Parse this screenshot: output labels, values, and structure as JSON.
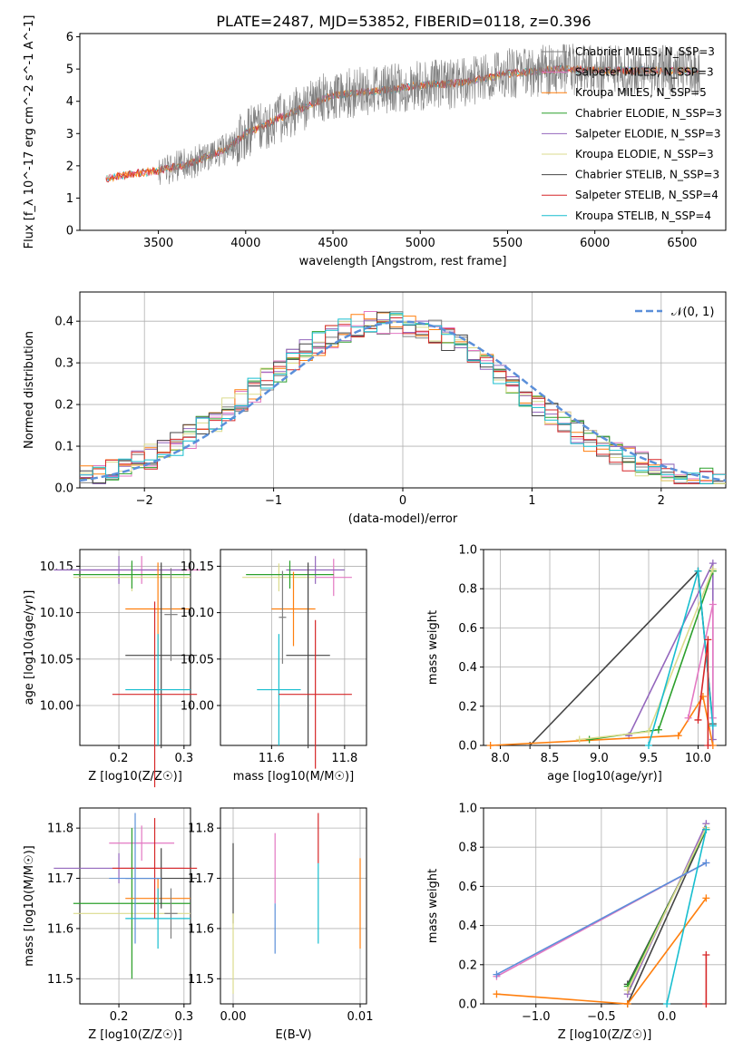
{
  "title": "PLATE=2487, MJD=53852, FIBERID=0118, z=0.396",
  "colors": {
    "grey": "#7f7f7f",
    "pink": "#e377c2",
    "orange": "#ff7f0e",
    "green": "#2ca02c",
    "purple": "#9467bd",
    "yellow": "#dbdb8d",
    "black": "#444444",
    "red": "#d62728",
    "cyan": "#17becf",
    "gauss": "#5b8fd9"
  },
  "chart_data": [
    {
      "id": "spectrum",
      "type": "line",
      "xlabel": "wavelength [Angstrom, rest frame]",
      "ylabel": "Flux [f_λ 10^-17 erg cm^-2 s^-1 A^-1]",
      "xlim": [
        3050,
        6750
      ],
      "ylim": [
        0,
        6.1
      ],
      "xticks": [
        "3500",
        "4000",
        "4500",
        "5000",
        "5500",
        "6000",
        "6500"
      ],
      "yticks": [
        "0",
        "1",
        "2",
        "3",
        "4",
        "5",
        "6"
      ],
      "legend": [
        "Chabrier MILES, N_SSP=3",
        "Salpeter MILES, N_SSP=3",
        "Kroupa MILES, N_SSP=5",
        "Chabrier ELODIE, N_SSP=3",
        "Salpeter ELODIE, N_SSP=3",
        "Kroupa ELODIE, N_SSP=3",
        "Chabrier STELIB, N_SSP=3",
        "Salpeter STELIB, N_SSP=4",
        "Kroupa STELIB, N_SSP=4"
      ],
      "continuum": [
        [
          3200,
          1.6
        ],
        [
          3350,
          1.75
        ],
        [
          3500,
          1.85
        ],
        [
          3700,
          2.1
        ],
        [
          3900,
          2.55
        ],
        [
          4000,
          3.0
        ],
        [
          4200,
          3.5
        ],
        [
          4500,
          4.2
        ],
        [
          4800,
          4.35
        ],
        [
          5000,
          4.5
        ],
        [
          5200,
          4.55
        ],
        [
          5500,
          4.85
        ],
        [
          5800,
          5.0
        ],
        [
          6100,
          4.95
        ],
        [
          6400,
          4.95
        ],
        [
          6600,
          4.95
        ]
      ]
    },
    {
      "id": "residuals",
      "type": "histogram",
      "xlabel": "(data-model)/error",
      "ylabel": "Normed distribution",
      "xlim": [
        -2.5,
        2.5
      ],
      "ylim": [
        0,
        0.47
      ],
      "xticks": [
        "−2",
        "−1",
        "0",
        "1",
        "2"
      ],
      "yticks": [
        "0.0",
        "0.1",
        "0.2",
        "0.3",
        "0.4"
      ],
      "legend": "𝒩(0, 1)"
    },
    {
      "id": "age-Z",
      "type": "scatter",
      "xlabel": "Z [log10(Z/Z☉)]",
      "ylabel": "age [log10(age/yr)]",
      "xlim": [
        0.14,
        0.31
      ],
      "ylim": [
        9.957,
        10.168
      ],
      "xticks": [
        "0.2",
        "0.3"
      ],
      "yticks": [
        "10.00",
        "10.05",
        "10.10",
        "10.15"
      ],
      "points": [
        {
          "c": "pink",
          "x": 0.235,
          "y": 10.146,
          "ex": 0.09,
          "ey": 0.015
        },
        {
          "c": "purple",
          "x": 0.2,
          "y": 10.146,
          "ex": 0.1,
          "ey": 0.015
        },
        {
          "c": "yellow",
          "x": 0.22,
          "y": 10.138,
          "ex": 0.09,
          "ey": 0.015
        },
        {
          "c": "green",
          "x": 0.22,
          "y": 10.141,
          "ex": 0.09,
          "ey": 0.015
        },
        {
          "c": "orange",
          "x": 0.26,
          "y": 10.104,
          "ex": 0.05,
          "ey": 0.05
        },
        {
          "c": "black",
          "x": 0.265,
          "y": 10.054,
          "ex": 0.055,
          "ey": 0.1
        },
        {
          "c": "grey",
          "x": 0.28,
          "y": 10.098,
          "ex": 0.01,
          "ey": 0.05
        },
        {
          "c": "cyan",
          "x": 0.26,
          "y": 10.017,
          "ex": 0.05,
          "ey": 0.06
        },
        {
          "c": "red",
          "x": 0.255,
          "y": 10.012,
          "ex": 0.065,
          "ey": 0.1
        }
      ]
    },
    {
      "id": "age-mass",
      "type": "scatter",
      "xlabel": "mass [log10(M/M☉)]",
      "ylabel": "",
      "xlim": [
        11.46,
        11.86
      ],
      "ylim": [
        9.957,
        10.168
      ],
      "xticks": [
        "11.6",
        "11.8"
      ],
      "yticks": [
        "10.00",
        "10.05",
        "10.10",
        "10.15"
      ],
      "points": [
        {
          "c": "pink",
          "x": 11.77,
          "y": 10.138,
          "ex": 0.05,
          "ey": 0.02
        },
        {
          "c": "purple",
          "x": 11.72,
          "y": 10.146,
          "ex": 0.08,
          "ey": 0.015
        },
        {
          "c": "yellow",
          "x": 11.62,
          "y": 10.138,
          "ex": 0.1,
          "ey": 0.015
        },
        {
          "c": "green",
          "x": 11.65,
          "y": 10.141,
          "ex": 0.12,
          "ey": 0.015
        },
        {
          "c": "orange",
          "x": 11.66,
          "y": 10.104,
          "ex": 0.06,
          "ey": 0.04
        },
        {
          "c": "black",
          "x": 11.7,
          "y": 10.054,
          "ex": 0.06,
          "ey": 0.1
        },
        {
          "c": "grey",
          "x": 11.63,
          "y": 10.095,
          "ex": 0.01,
          "ey": 0.05
        },
        {
          "c": "cyan",
          "x": 11.62,
          "y": 10.017,
          "ex": 0.06,
          "ey": 0.06
        },
        {
          "c": "red",
          "x": 11.72,
          "y": 10.012,
          "ex": 0.1,
          "ey": 0.08
        }
      ]
    },
    {
      "id": "mw-age",
      "type": "line",
      "xlabel": "age [log10(age/yr)]",
      "ylabel": "mass weight",
      "xlim": [
        7.83,
        10.28
      ],
      "ylim": [
        0,
        1
      ],
      "xticks": [
        "8.0",
        "8.5",
        "9.0",
        "9.5",
        "10.0"
      ],
      "yticks": [
        "0.0",
        "0.2",
        "0.4",
        "0.6",
        "0.8",
        "1.0"
      ],
      "series": [
        {
          "c": "black",
          "pts": [
            [
              8.3,
              0.0
            ],
            [
              10.0,
              0.89
            ],
            [
              10.15,
              0.11
            ]
          ]
        },
        {
          "c": "purple",
          "pts": [
            [
              9.3,
              0.05
            ],
            [
              10.15,
              0.93
            ],
            [
              10.15,
              0.03
            ]
          ]
        },
        {
          "c": "orange",
          "pts": [
            [
              7.9,
              0.0
            ],
            [
              9.8,
              0.05
            ],
            [
              10.05,
              0.25
            ],
            [
              10.15,
              0.0
            ]
          ]
        },
        {
          "c": "green",
          "pts": [
            [
              8.9,
              0.03
            ],
            [
              9.6,
              0.08
            ],
            [
              10.15,
              0.89
            ]
          ]
        },
        {
          "c": "yellow",
          "pts": [
            [
              8.8,
              0.03
            ],
            [
              9.5,
              0.07
            ],
            [
              10.15,
              0.9
            ]
          ]
        },
        {
          "c": "pink",
          "pts": [
            [
              9.9,
              0.14
            ],
            [
              10.15,
              0.72
            ],
            [
              10.15,
              0.14
            ]
          ]
        },
        {
          "c": "cyan",
          "pts": [
            [
              9.5,
              0.0
            ],
            [
              10.0,
              0.89
            ],
            [
              10.15,
              0.1
            ]
          ]
        },
        {
          "c": "red",
          "pts": [
            [
              10.0,
              0.13
            ],
            [
              10.1,
              0.54
            ],
            [
              10.1,
              0.0
            ]
          ]
        }
      ]
    },
    {
      "id": "mass-Z",
      "type": "scatter",
      "xlabel": "Z [log10(Z/Z☉)]",
      "ylabel": "mass [log10(M/M☉)]",
      "xlim": [
        0.14,
        0.31
      ],
      "ylim": [
        11.45,
        11.84
      ],
      "xticks": [
        "0.2",
        "0.3"
      ],
      "yticks": [
        "11.5",
        "11.6",
        "11.7",
        "11.8"
      ],
      "points": [
        {
          "c": "pink",
          "x": 0.235,
          "y": 11.77,
          "ex": 0.05,
          "ey": 0.035
        },
        {
          "c": "purple",
          "x": 0.2,
          "y": 11.72,
          "ex": 0.1,
          "ey": 0.03
        },
        {
          "c": "yellow",
          "x": 0.22,
          "y": 11.63,
          "ex": 0.09,
          "ey": 0.12
        },
        {
          "c": "green",
          "x": 0.22,
          "y": 11.65,
          "ex": 0.09,
          "ey": 0.15
        },
        {
          "c": "orange",
          "x": 0.26,
          "y": 11.66,
          "ex": 0.05,
          "ey": 0.04
        },
        {
          "c": "black",
          "x": 0.265,
          "y": 11.7,
          "ex": 0.055,
          "ey": 0.06
        },
        {
          "c": "grey",
          "x": 0.28,
          "y": 11.63,
          "ex": 0.01,
          "ey": 0.05
        },
        {
          "c": "cyan",
          "x": 0.26,
          "y": 11.62,
          "ex": 0.05,
          "ey": 0.06
        },
        {
          "c": "red",
          "x": 0.255,
          "y": 11.72,
          "ex": 0.065,
          "ey": 0.1
        },
        {
          "c": "gauss",
          "x": 0.225,
          "y": 11.7,
          "ex": 0.04,
          "ey": 0.13
        }
      ]
    },
    {
      "id": "mass-EBV",
      "type": "scatter",
      "xlabel": "E(B-V)",
      "ylabel": "",
      "xlim": [
        -0.001,
        0.0105
      ],
      "ylim": [
        11.45,
        11.84
      ],
      "xticks": [
        "0.00",
        "0.01"
      ],
      "yticks": [
        "11.5",
        "11.6",
        "11.7",
        "11.8"
      ],
      "points": [
        {
          "c": "black",
          "x": 0.0,
          "y": 11.69,
          "ey": 0.08
        },
        {
          "c": "yellow",
          "x": 0.0,
          "y": 11.55,
          "ey": 0.08
        },
        {
          "c": "pink",
          "x": 0.0033,
          "y": 11.72,
          "ey": 0.07
        },
        {
          "c": "gauss",
          "x": 0.0033,
          "y": 11.6,
          "ey": 0.05
        },
        {
          "c": "red",
          "x": 0.0067,
          "y": 11.78,
          "ey": 0.05
        },
        {
          "c": "cyan",
          "x": 0.0067,
          "y": 11.65,
          "ey": 0.08
        },
        {
          "c": "orange",
          "x": 0.01,
          "y": 11.65,
          "ey": 0.09
        }
      ]
    },
    {
      "id": "mw-Z",
      "type": "line",
      "xlabel": "Z [log10(Z/Z☉)]",
      "ylabel": "mass weight",
      "xlim": [
        -1.4,
        0.45
      ],
      "ylim": [
        0,
        1
      ],
      "xticks": [
        "−1.0",
        "−0.5",
        "0.0"
      ],
      "yticks": [
        "0.0",
        "0.2",
        "0.4",
        "0.6",
        "0.8",
        "1.0"
      ],
      "series": [
        {
          "c": "black",
          "pts": [
            [
              -0.3,
              0.1
            ],
            [
              0.3,
              0.89
            ],
            [
              -0.3,
              0.0
            ]
          ]
        },
        {
          "c": "purple",
          "pts": [
            [
              -0.3,
              0.05
            ],
            [
              0.3,
              0.92
            ]
          ]
        },
        {
          "c": "orange",
          "pts": [
            [
              -1.3,
              0.05
            ],
            [
              -0.3,
              0.0
            ],
            [
              0.3,
              0.54
            ]
          ]
        },
        {
          "c": "green",
          "pts": [
            [
              -0.3,
              0.09
            ],
            [
              0.3,
              0.89
            ]
          ]
        },
        {
          "c": "yellow",
          "pts": [
            [
              -0.3,
              0.07
            ],
            [
              0.3,
              0.9
            ]
          ]
        },
        {
          "c": "pink",
          "pts": [
            [
              -1.3,
              0.14
            ],
            [
              0.3,
              0.72
            ]
          ]
        },
        {
          "c": "gauss",
          "pts": [
            [
              -1.3,
              0.15
            ],
            [
              0.3,
              0.72
            ]
          ]
        },
        {
          "c": "cyan",
          "pts": [
            [
              0.0,
              0.0
            ],
            [
              0.3,
              0.89
            ]
          ]
        },
        {
          "c": "red",
          "pts": [
            [
              0.3,
              0.25
            ],
            [
              0.3,
              0.0
            ]
          ]
        }
      ]
    }
  ]
}
